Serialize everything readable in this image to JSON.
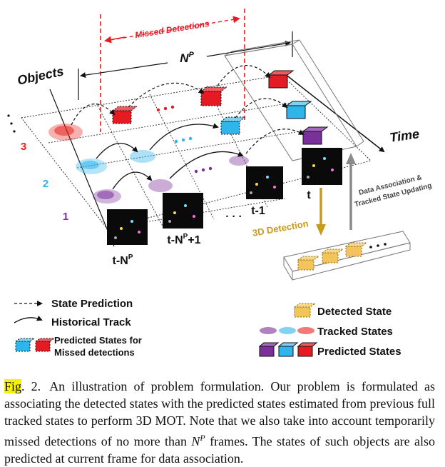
{
  "diagram": {
    "missed_detections": "Missed Detections",
    "np_base": "N",
    "np_sup": "P",
    "objects_label": "Objects",
    "time_label": "Time",
    "object_ids": [
      "3",
      "2",
      "1"
    ],
    "dots_vertical": "·\n·\n·",
    "frame_labels": {
      "t_minus_np_base": "t-N",
      "t_minus_np_sup": "P",
      "t_minus_np_plus1_base": "t-N",
      "t_minus_np_plus1_sup": "P",
      "t_minus_np_plus1_tail": "+1",
      "ellipsis": "· · ·",
      "t_minus_1": "t-1",
      "t": "t"
    },
    "detection_3d": "3D Detection",
    "data_assoc_line1": "Data Association &",
    "data_assoc_line2": "Tracked State Updating",
    "colors": {
      "obj3": "#e8221e",
      "obj2": "#2fb4ec",
      "obj1": "#7a2f9a",
      "detected": "#f2c45a",
      "missed": "#e51b23",
      "arrow_gold": "#c89a1e"
    }
  },
  "legend": {
    "state_prediction": "State Prediction",
    "historical_track": "Historical Track",
    "predicted_missed_line1": "Predicted States for",
    "predicted_missed_line2": "Missed detections",
    "detected_state": "Detected State",
    "tracked_states": "Tracked States",
    "predicted_states": "Predicted States"
  },
  "caption": {
    "fig_label": "Fig",
    "fig_number": ". 2.",
    "text_part1": "An illustration of problem formulation. Our problem is formulated as associating the detected states with the predicted states estimated from previous full tracked states to perform 3D MOT. Note that we also take into account temporarily missed detections of no more than ",
    "np_base": "N",
    "np_sup": "P",
    "text_part2": " frames. The states of such objects are also predicted at current frame for data association."
  }
}
